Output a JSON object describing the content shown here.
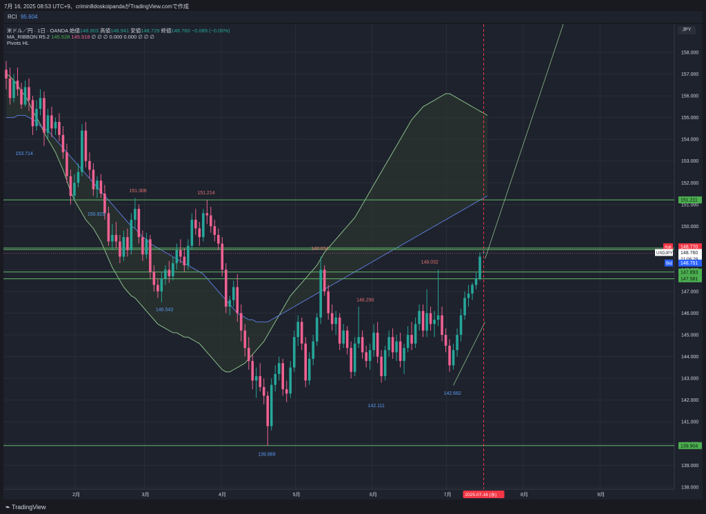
{
  "header": {
    "snapshot_text": "7月 16, 2025 08:53 UTC+9、crimin8doskoipandaがTradingView.comで作成"
  },
  "rci": {
    "label": "RCI",
    "value": "95.604"
  },
  "legend": {
    "symbol": "米ドル／円 · 1日 · OANDA",
    "open_label": "始値",
    "open": "148.903",
    "high_label": "高値",
    "high": "148.941",
    "low_label": "安値",
    "low": "148.729",
    "close_label": "終値",
    "close": "148.760",
    "change": "−0.089 (−0.06%)",
    "ribbon_name": "MA_RIBBON R5.2",
    "ribbon_v1": "145.528",
    "ribbon_v2": "145.918",
    "ribbon_rest": "∅ ∅ ∅ 0.000 0.000 ∅ ∅ ∅",
    "pivots": "Pivots HL"
  },
  "currency_button": "JPY",
  "footer": {
    "brand": "TradingView"
  },
  "chart_data": {
    "type": "candlestick",
    "symbol": "USDJPY",
    "y_ticks": [
      "158.000",
      "157.000",
      "156.000",
      "155.000",
      "154.000",
      "153.000",
      "152.000",
      "151.000",
      "150.000",
      "149.000",
      "148.000",
      "147.000",
      "146.000",
      "145.000",
      "144.000",
      "143.000",
      "142.000",
      "141.000",
      "140.000",
      "139.000",
      "138.000"
    ],
    "ylim": [
      137.9,
      159.3
    ],
    "x_range": [
      "2025-01-03",
      "2025-10-01"
    ],
    "x_ticks": [
      {
        "date": "2025-02-01",
        "label": "2月"
      },
      {
        "date": "2025-03-01",
        "label": "3月"
      },
      {
        "date": "2025-04-01",
        "label": "4月"
      },
      {
        "date": "2025-05-01",
        "label": "5月"
      },
      {
        "date": "2025-06-01",
        "label": "6月"
      },
      {
        "date": "2025-07-01",
        "label": "7月"
      },
      {
        "date": "2025-08-01",
        "label": "8月"
      },
      {
        "date": "2025-09-01",
        "label": "9月"
      }
    ],
    "current_date_label": "2025-07-16 (水)",
    "current_date": "2025-07-16",
    "candles_ohlc": [
      [
        157.2,
        157.6,
        156.3,
        156.8
      ],
      [
        156.8,
        157.3,
        155.6,
        155.9
      ],
      [
        155.9,
        157.0,
        155.7,
        156.7
      ],
      [
        156.7,
        157.3,
        156.0,
        156.3
      ],
      [
        156.3,
        156.6,
        155.4,
        155.6
      ],
      [
        155.6,
        156.7,
        155.5,
        156.4
      ],
      [
        156.4,
        156.8,
        155.3,
        155.8
      ],
      [
        155.8,
        156.0,
        154.2,
        154.6
      ],
      [
        154.6,
        155.8,
        154.4,
        155.4
      ],
      [
        155.4,
        156.3,
        155.1,
        155.9
      ],
      [
        155.9,
        156.2,
        153.7,
        154.3
      ],
      [
        154.3,
        155.4,
        154.0,
        155.1
      ],
      [
        155.1,
        155.5,
        154.1,
        154.5
      ],
      [
        154.5,
        155.0,
        154.2,
        154.8
      ],
      [
        154.8,
        155.2,
        153.9,
        154.2
      ],
      [
        154.2,
        154.6,
        153.1,
        153.4
      ],
      [
        153.4,
        153.8,
        152.0,
        152.3
      ],
      [
        152.3,
        152.6,
        151.0,
        151.4
      ],
      [
        151.4,
        152.4,
        151.2,
        152.0
      ],
      [
        152.0,
        152.9,
        151.8,
        152.5
      ],
      [
        152.5,
        154.7,
        152.3,
        154.4
      ],
      [
        154.4,
        154.8,
        152.7,
        153.0
      ],
      [
        153.0,
        153.4,
        152.2,
        152.6
      ],
      [
        152.6,
        152.9,
        151.4,
        151.7
      ],
      [
        151.7,
        152.3,
        151.3,
        152.1
      ],
      [
        152.1,
        152.4,
        151.3,
        151.5
      ],
      [
        151.5,
        151.9,
        150.3,
        150.6
      ],
      [
        150.6,
        150.9,
        149.1,
        149.3
      ],
      [
        149.3,
        150.1,
        148.9,
        149.6
      ],
      [
        149.6,
        150.2,
        149.0,
        149.3
      ],
      [
        149.3,
        149.6,
        148.3,
        148.6
      ],
      [
        148.6,
        149.8,
        148.4,
        149.5
      ],
      [
        149.5,
        149.9,
        148.6,
        148.9
      ],
      [
        148.9,
        150.6,
        148.7,
        150.3
      ],
      [
        150.3,
        151.3,
        149.9,
        150.8
      ],
      [
        150.8,
        151.0,
        149.2,
        149.5
      ],
      [
        149.5,
        149.8,
        148.4,
        148.7
      ],
      [
        148.7,
        149.7,
        148.5,
        149.4
      ],
      [
        149.4,
        149.6,
        147.6,
        147.9
      ],
      [
        147.9,
        148.2,
        147.0,
        147.3
      ],
      [
        147.3,
        147.6,
        146.7,
        147.0
      ],
      [
        147.0,
        147.9,
        146.5,
        147.6
      ],
      [
        147.6,
        148.2,
        147.3,
        148.0
      ],
      [
        148.0,
        148.4,
        147.4,
        147.7
      ],
      [
        147.7,
        148.6,
        147.5,
        148.3
      ],
      [
        148.3,
        149.2,
        148.0,
        148.9
      ],
      [
        148.9,
        149.4,
        148.3,
        148.6
      ],
      [
        148.6,
        149.0,
        147.9,
        148.2
      ],
      [
        148.2,
        149.4,
        148.0,
        149.1
      ],
      [
        149.1,
        150.6,
        148.9,
        150.3
      ],
      [
        150.3,
        150.8,
        149.6,
        149.9
      ],
      [
        149.9,
        150.2,
        149.1,
        149.5
      ],
      [
        149.5,
        150.8,
        149.3,
        150.6
      ],
      [
        150.6,
        151.2,
        150.1,
        150.5
      ],
      [
        150.5,
        150.9,
        149.7,
        150.0
      ],
      [
        150.0,
        150.3,
        149.3,
        149.6
      ],
      [
        149.6,
        149.9,
        148.9,
        149.2
      ],
      [
        149.2,
        149.5,
        147.7,
        148.0
      ],
      [
        148.0,
        148.3,
        146.0,
        146.3
      ],
      [
        146.3,
        146.8,
        145.9,
        146.6
      ],
      [
        146.6,
        147.5,
        146.3,
        147.2
      ],
      [
        147.2,
        147.8,
        145.6,
        146.0
      ],
      [
        146.0,
        146.4,
        144.7,
        145.2
      ],
      [
        145.2,
        145.5,
        144.0,
        144.4
      ],
      [
        144.4,
        144.9,
        143.4,
        143.8
      ],
      [
        143.8,
        144.1,
        142.5,
        142.9
      ],
      [
        142.9,
        143.5,
        142.1,
        143.1
      ],
      [
        143.1,
        143.7,
        142.4,
        142.6
      ],
      [
        142.6,
        143.0,
        141.8,
        142.2
      ],
      [
        142.2,
        142.4,
        139.9,
        140.8
      ],
      [
        140.8,
        143.0,
        140.6,
        142.7
      ],
      [
        142.7,
        143.6,
        142.4,
        143.2
      ],
      [
        143.2,
        144.0,
        142.9,
        143.7
      ],
      [
        143.7,
        143.9,
        142.2,
        142.5
      ],
      [
        142.5,
        142.9,
        141.9,
        142.3
      ],
      [
        142.3,
        143.8,
        142.1,
        143.5
      ],
      [
        143.5,
        145.2,
        143.3,
        144.9
      ],
      [
        144.9,
        145.9,
        144.5,
        145.6
      ],
      [
        145.6,
        145.8,
        144.3,
        144.6
      ],
      [
        144.6,
        144.9,
        142.6,
        142.9
      ],
      [
        142.9,
        144.2,
        142.7,
        143.9
      ],
      [
        143.9,
        145.0,
        143.6,
        144.7
      ],
      [
        144.7,
        146.0,
        144.5,
        145.8
      ],
      [
        145.8,
        148.6,
        145.5,
        148.0
      ],
      [
        148.0,
        148.2,
        146.8,
        147.0
      ],
      [
        147.0,
        147.3,
        145.7,
        146.0
      ],
      [
        146.0,
        146.4,
        145.2,
        145.5
      ],
      [
        145.5,
        146.1,
        145.0,
        145.8
      ],
      [
        145.8,
        146.0,
        144.3,
        144.6
      ],
      [
        144.6,
        145.5,
        144.4,
        145.2
      ],
      [
        145.2,
        145.4,
        144.1,
        144.4
      ],
      [
        144.4,
        144.7,
        143.0,
        143.3
      ],
      [
        143.3,
        144.9,
        143.1,
        144.6
      ],
      [
        144.6,
        146.3,
        144.4,
        144.9
      ],
      [
        144.9,
        145.2,
        143.9,
        144.2
      ],
      [
        144.2,
        144.5,
        143.5,
        143.8
      ],
      [
        143.8,
        144.6,
        143.4,
        144.3
      ],
      [
        144.3,
        145.5,
        144.0,
        145.1
      ],
      [
        145.1,
        145.6,
        143.7,
        144.0
      ],
      [
        144.0,
        144.3,
        142.8,
        143.1
      ],
      [
        143.1,
        144.5,
        142.9,
        144.3
      ],
      [
        144.3,
        145.2,
        144.0,
        144.9
      ],
      [
        144.9,
        145.3,
        143.9,
        144.2
      ],
      [
        144.2,
        145.0,
        143.8,
        144.7
      ],
      [
        144.7,
        145.1,
        143.5,
        143.8
      ],
      [
        143.8,
        144.6,
        143.2,
        144.4
      ],
      [
        144.4,
        145.4,
        144.2,
        145.0
      ],
      [
        145.0,
        145.6,
        144.3,
        144.6
      ],
      [
        144.6,
        145.8,
        144.4,
        145.5
      ],
      [
        145.5,
        146.4,
        145.2,
        146.1
      ],
      [
        146.1,
        146.4,
        144.9,
        145.2
      ],
      [
        145.2,
        147.1,
        144.9,
        146.0
      ],
      [
        146.0,
        146.3,
        145.2,
        145.5
      ],
      [
        145.5,
        146.1,
        144.9,
        145.7
      ],
      [
        145.7,
        148.0,
        145.4,
        145.9
      ],
      [
        145.9,
        146.3,
        144.7,
        145.0
      ],
      [
        145.0,
        145.3,
        144.2,
        144.5
      ],
      [
        144.5,
        144.8,
        143.3,
        143.6
      ],
      [
        143.6,
        144.6,
        143.4,
        144.3
      ],
      [
        144.3,
        145.3,
        144.0,
        145.0
      ],
      [
        145.0,
        146.2,
        144.7,
        145.9
      ],
      [
        145.9,
        147.0,
        145.7,
        146.7
      ],
      [
        146.7,
        147.3,
        146.3,
        146.9
      ],
      [
        146.9,
        147.4,
        146.6,
        147.3
      ],
      [
        147.3,
        147.9,
        147.1,
        147.6
      ],
      [
        147.6,
        148.8,
        147.5,
        148.6
      ],
      [
        148.8,
        148.9,
        148.7,
        148.8
      ]
    ],
    "price_labels": [
      {
        "value": 151.211,
        "label": "151.211"
      },
      {
        "value": 148.997,
        "label": "148.997"
      },
      {
        "value": 148.925,
        "label": "148.925"
      },
      {
        "value": 148.839,
        "label": "148.839"
      },
      {
        "value": 147.893,
        "label": "147.893"
      },
      {
        "value": 147.581,
        "label": "147.581"
      },
      {
        "value": 139.904,
        "label": "139.904"
      }
    ],
    "ask": {
      "label": "Ask",
      "value": "148.770"
    },
    "last": {
      "symbol": "USDJPY",
      "value": "148.760",
      "countdown": "21:06:29"
    },
    "bid": {
      "label": "Bid",
      "value": "148.751"
    },
    "pivot_labels": [
      {
        "index": 5,
        "value": 153.714,
        "label": "153.714",
        "kind": "low"
      },
      {
        "index": 24,
        "value": 150.929,
        "label": "150.929",
        "kind": "low"
      },
      {
        "index": 35,
        "value": 151.306,
        "label": "151.306",
        "kind": "high"
      },
      {
        "index": 42,
        "value": 146.543,
        "label": "146.543",
        "kind": "low"
      },
      {
        "index": 53,
        "value": 151.214,
        "label": "151.214",
        "kind": "high"
      },
      {
        "index": 69,
        "value": 139.889,
        "label": "139.889",
        "kind": "low"
      },
      {
        "index": 83,
        "value": 148.654,
        "label": "148.654",
        "kind": "high"
      },
      {
        "index": 98,
        "value": 142.111,
        "label": "142.111",
        "kind": "low"
      },
      {
        "index": 95,
        "value": 146.29,
        "label": "146.290",
        "kind": "high"
      },
      {
        "index": 112,
        "value": 148.032,
        "label": "148.032",
        "kind": "high"
      },
      {
        "index": 118,
        "value": 142.682,
        "label": "142.682",
        "kind": "low"
      }
    ],
    "horizontal_lines": [
      151.211,
      148.997,
      148.925,
      147.893,
      147.581,
      139.904
    ],
    "ma_fast": [
      157.0,
      156.9,
      156.7,
      156.5,
      156.2,
      156.0,
      155.7,
      155.3,
      155.0,
      154.7,
      154.3,
      154.0,
      153.7,
      153.4,
      153.0,
      152.6,
      152.1,
      151.6,
      151.2,
      150.9,
      150.6,
      150.3,
      150.1,
      149.9,
      149.6,
      149.3,
      148.9,
      148.5,
      148.1,
      147.8,
      147.5,
      147.2,
      147.0,
      146.8,
      146.7,
      146.5,
      146.3,
      146.1,
      145.9,
      145.7,
      145.5,
      145.4,
      145.3,
      145.2,
      145.1,
      145.1,
      145.0,
      144.9,
      144.9,
      144.8,
      144.7,
      144.6,
      144.4,
      144.2,
      144.0,
      143.8,
      143.6,
      143.4,
      143.3,
      143.3,
      143.4,
      143.5,
      143.6,
      143.7,
      143.9,
      144.1,
      144.3,
      144.5,
      144.7,
      145.0,
      145.3,
      145.6,
      145.9,
      146.2,
      146.5,
      146.8,
      147.0,
      147.2,
      147.4,
      147.6,
      147.8,
      148.0,
      148.2,
      148.5,
      148.8,
      149.0,
      149.2,
      149.4,
      149.6,
      149.8,
      150.0,
      150.2,
      150.4,
      150.7,
      151.0,
      151.3,
      151.6,
      151.9,
      152.2,
      152.5,
      152.8,
      153.1,
      153.4,
      153.7,
      154.0,
      154.3,
      154.6,
      154.9,
      155.1,
      155.3,
      155.5,
      155.6,
      155.7,
      155.8,
      155.9,
      156.0,
      156.1,
      156.1,
      156.0,
      155.9,
      155.8,
      155.7,
      155.6,
      155.5,
      155.4,
      155.3,
      155.2,
      155.1
    ],
    "ma_slow": [
      155.0,
      155.0,
      155.0,
      155.1,
      155.1,
      155.1,
      155.0,
      154.9,
      154.8,
      154.6,
      154.5,
      154.4,
      154.2,
      154.0,
      153.8,
      153.6,
      153.4,
      153.2,
      153.0,
      152.8,
      152.6,
      152.4,
      152.2,
      152.0,
      151.8,
      151.6,
      151.4,
      151.2,
      151.0,
      150.8,
      150.6,
      150.4,
      150.2,
      150.0,
      149.9,
      149.7,
      149.5,
      149.4,
      149.2,
      149.1,
      149.0,
      148.9,
      148.8,
      148.7,
      148.6,
      148.5,
      148.4,
      148.3,
      148.2,
      148.1,
      148.0,
      147.9,
      147.8,
      147.6,
      147.4,
      147.2,
      147.0,
      146.8,
      146.6,
      146.4,
      146.2,
      146.0,
      145.9,
      145.8,
      145.7,
      145.7,
      145.6,
      145.6,
      145.6,
      145.6,
      145.7,
      145.8,
      145.9,
      146.0,
      146.1,
      146.2,
      146.3,
      146.4,
      146.5,
      146.6,
      146.7,
      146.8,
      146.9,
      147.0,
      147.1,
      147.2,
      147.3,
      147.4,
      147.5,
      147.6,
      147.7,
      147.8,
      147.9,
      148.0,
      148.1,
      148.2,
      148.3,
      148.4,
      148.5,
      148.6,
      148.7,
      148.8,
      148.9,
      149.0,
      149.1,
      149.2,
      149.3,
      149.4,
      149.5,
      149.6,
      149.7,
      149.8,
      149.9,
      150.0,
      150.1,
      150.2,
      150.3,
      150.4,
      150.5,
      150.6,
      150.7,
      150.8,
      150.9,
      151.0,
      151.1,
      151.2,
      151.3,
      151.4
    ],
    "colors": {
      "up": "#26a69a",
      "down": "#f06292",
      "ribbon_fill": "#2e3a2f",
      "ma_fast": "#8bbf8b",
      "ma_slow": "#5b7bd6",
      "hline": "#66bb6a",
      "current_line": "#f23645",
      "ask": "#f23645",
      "bid": "#2962ff",
      "grid": "#2a2e39"
    }
  }
}
